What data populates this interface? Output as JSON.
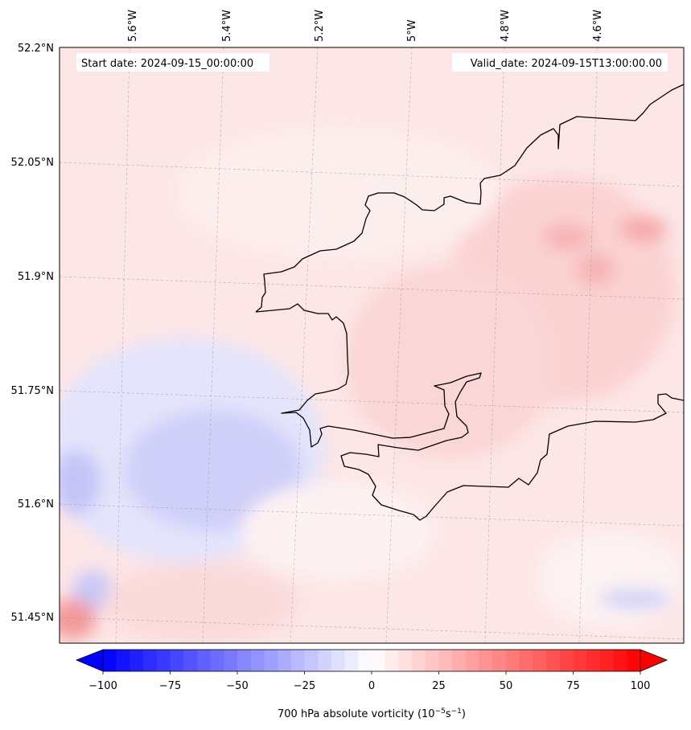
{
  "header": {
    "start_date": "Start date: 2024-09-15_00:00:00",
    "valid_date": "Valid_date: 2024-09-15T13:00:00.00"
  },
  "longitude_labels": [
    "5.6°W",
    "5.4°W",
    "5.2°W",
    "5°W",
    "4.8°W",
    "4.6°W"
  ],
  "latitude_labels": [
    "52.2°N",
    "52.05°N",
    "51.9°N",
    "51.75°N",
    "51.6°N",
    "51.45°N"
  ],
  "colorbar": {
    "ticks": [
      "−100",
      "−75",
      "−50",
      "−25",
      "0",
      "25",
      "50",
      "75",
      "100"
    ],
    "label_main": "700 hPa absolute vorticity (10",
    "label_exp1": "−5",
    "label_mid": "s",
    "label_exp2": "−1",
    "label_end": ")",
    "vmin": -100,
    "vmax": 100,
    "extend": "both",
    "colormap": "bwr",
    "low_color": "#0000ff",
    "mid_color": "#ffffff",
    "high_color": "#ff0000"
  },
  "map": {
    "projection": "Lambert conformal",
    "gridlines": "dashed",
    "coastline_color": "#000000",
    "extent": {
      "lon_min": -5.75,
      "lon_max": -4.5,
      "lat_min": 51.42,
      "lat_max": 52.2
    }
  }
}
